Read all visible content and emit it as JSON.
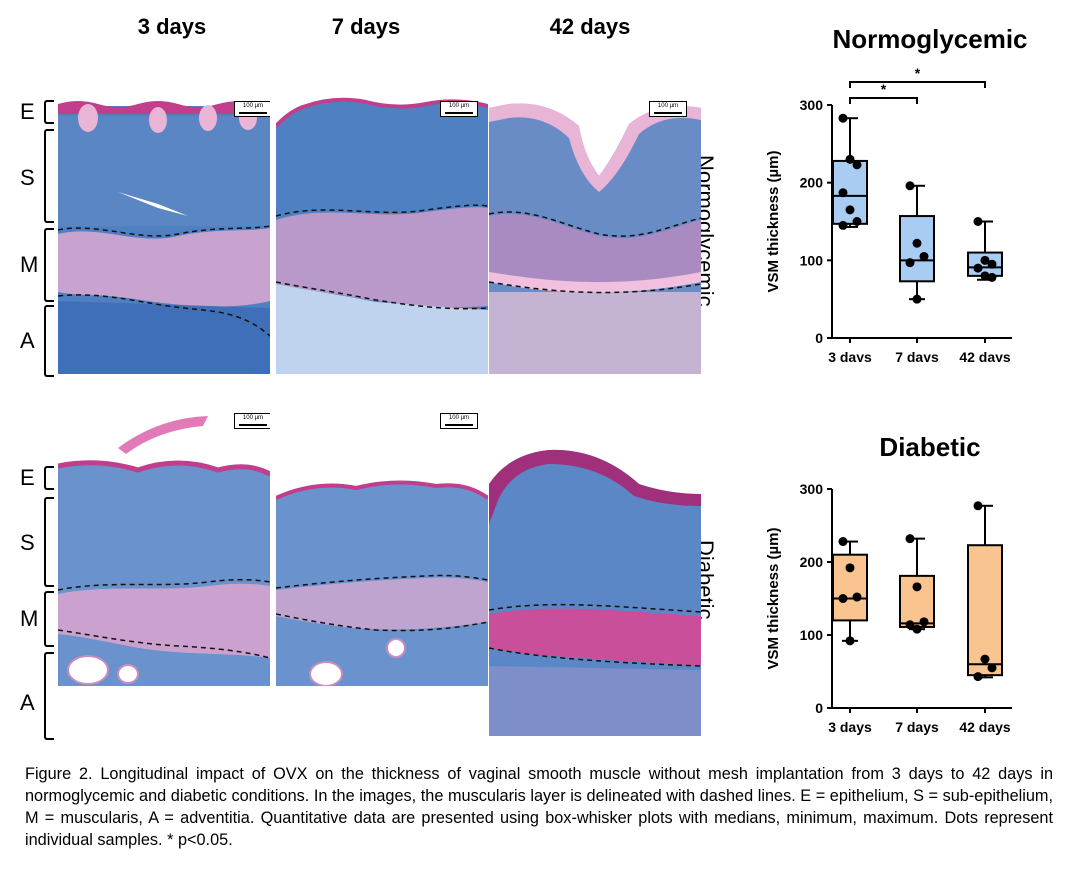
{
  "figure": {
    "column_headers": [
      "3 days",
      "7 days",
      "42 days"
    ],
    "layer_labels": [
      "E",
      "S",
      "M",
      "A"
    ],
    "row_labels": [
      "Normoglycemic",
      "Diabetic"
    ],
    "scale_bar_text": "100 µm",
    "caption": "Figure 2. Longitudinal impact of OVX on the thickness of vaginal smooth muscle without mesh implantation from 3 days to 42 days in normoglycemic and diabetic conditions. In the images, the muscularis layer is delineated with dashed lines.  E = epithelium, S = sub-epithelium, M = muscularis, A = adventitia. Quantitative data are presented using box-whisker plots with medians, minimum, maximum. Dots represent individual samples. * p<0.05.",
    "colors": {
      "stroma_blue": "#4a7fc0",
      "muscle_pink": "#d9a8cf",
      "epithelium_magenta": "#c03e8c",
      "normo_box": "#a9cdf2",
      "diabetic_box": "#f9c48f"
    }
  },
  "chart_data": [
    {
      "type": "box",
      "title": "Normoglycemic",
      "ylabel": "VSM thickness (µm)",
      "ylim": [
        0,
        300
      ],
      "yticks": [
        0,
        100,
        200,
        300
      ],
      "categories": [
        "3 days",
        "7 days",
        "42 days"
      ],
      "boxes": [
        {
          "min": 143,
          "q1": 147,
          "median": 183,
          "q3": 228,
          "max": 283
        },
        {
          "min": 50,
          "q1": 73,
          "median": 100,
          "q3": 157,
          "max": 196
        },
        {
          "min": 75,
          "q1": 80,
          "median": 91,
          "q3": 110,
          "max": 150
        }
      ],
      "points": [
        [
          283,
          230,
          223,
          187,
          165,
          150,
          145
        ],
        [
          196,
          122,
          105,
          97,
          50
        ],
        [
          150,
          100,
          95,
          90,
          80,
          78
        ]
      ],
      "significance": [
        {
          "from": "3 days",
          "to": "7 days",
          "label": "*"
        },
        {
          "from": "3 days",
          "to": "42 days",
          "label": "*"
        }
      ],
      "box_color": "#a9cdf2"
    },
    {
      "type": "box",
      "title": "Diabetic",
      "ylabel": "VSM thickness (µm)",
      "ylim": [
        0,
        300
      ],
      "yticks": [
        0,
        100,
        200,
        300
      ],
      "categories": [
        "3 days",
        "7 days",
        "42 days"
      ],
      "boxes": [
        {
          "min": 92,
          "q1": 120,
          "median": 150,
          "q3": 210,
          "max": 228
        },
        {
          "min": 108,
          "q1": 111,
          "median": 116,
          "q3": 181,
          "max": 232
        },
        {
          "min": 42,
          "q1": 45,
          "median": 60,
          "q3": 223,
          "max": 277
        }
      ],
      "points": [
        [
          228,
          192,
          152,
          150,
          92
        ],
        [
          232,
          166,
          118,
          114,
          108
        ],
        [
          277,
          67,
          55,
          43
        ]
      ],
      "significance": [],
      "box_color": "#f9c48f"
    }
  ]
}
